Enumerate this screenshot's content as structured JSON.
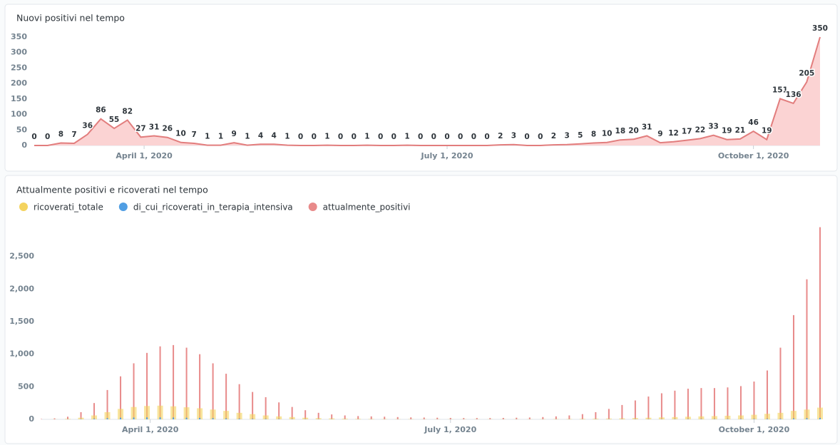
{
  "chart_data": [
    {
      "type": "area",
      "title": "Nuovi positivi nel tempo",
      "color": "#e27d7d",
      "fill": "#fbd3d3",
      "x": [
        "2020-02-28",
        "2020-03-03",
        "2020-03-07",
        "2020-03-11",
        "2020-03-15",
        "2020-03-19",
        "2020-03-23",
        "2020-03-27",
        "2020-03-31",
        "2020-04-04",
        "2020-04-08",
        "2020-04-12",
        "2020-04-16",
        "2020-04-20",
        "2020-04-24",
        "2020-04-28",
        "2020-05-02",
        "2020-05-06",
        "2020-05-10",
        "2020-05-14",
        "2020-05-18",
        "2020-05-22",
        "2020-05-26",
        "2020-05-30",
        "2020-06-03",
        "2020-06-07",
        "2020-06-11",
        "2020-06-15",
        "2020-06-19",
        "2020-06-23",
        "2020-06-27",
        "2020-07-01",
        "2020-07-05",
        "2020-07-09",
        "2020-07-13",
        "2020-07-17",
        "2020-07-21",
        "2020-07-25",
        "2020-07-29",
        "2020-08-02",
        "2020-08-06",
        "2020-08-10",
        "2020-08-14",
        "2020-08-18",
        "2020-08-22",
        "2020-08-26",
        "2020-08-30",
        "2020-09-03",
        "2020-09-07",
        "2020-09-11",
        "2020-09-15",
        "2020-09-19",
        "2020-09-23",
        "2020-09-27",
        "2020-10-01",
        "2020-10-05",
        "2020-10-09",
        "2020-10-13",
        "2020-10-17",
        "2020-10-21"
      ],
      "values": [
        0,
        0,
        8,
        7,
        36,
        86,
        55,
        82,
        27,
        31,
        26,
        10,
        7,
        1,
        1,
        9,
        1,
        4,
        4,
        1,
        0,
        0,
        1,
        0,
        0,
        1,
        0,
        0,
        1,
        0,
        0,
        0,
        0,
        0,
        0,
        2,
        3,
        0,
        0,
        2,
        3,
        5,
        8,
        10,
        18,
        20,
        31,
        9,
        12,
        17,
        22,
        33,
        19,
        21,
        46,
        19,
        151,
        136,
        205,
        350
      ],
      "xlim": [
        "2020-02-28",
        "2020-10-21"
      ],
      "xticks": [
        {
          "value": "2020-04-01",
          "label": "April 1, 2020"
        },
        {
          "value": "2020-07-01",
          "label": "July 1, 2020"
        },
        {
          "value": "2020-10-01",
          "label": "October 1, 2020"
        }
      ],
      "ylim": [
        0,
        350
      ],
      "yticks": [
        0,
        50,
        100,
        150,
        200,
        250,
        300,
        350
      ],
      "grid": false
    },
    {
      "type": "bar",
      "title": "Attualmente positivi e ricoverati nel tempo",
      "x": [
        "2020-02-28",
        "2020-03-03",
        "2020-03-07",
        "2020-03-11",
        "2020-03-15",
        "2020-03-19",
        "2020-03-23",
        "2020-03-27",
        "2020-03-31",
        "2020-04-04",
        "2020-04-08",
        "2020-04-12",
        "2020-04-16",
        "2020-04-20",
        "2020-04-24",
        "2020-04-28",
        "2020-05-02",
        "2020-05-06",
        "2020-05-10",
        "2020-05-14",
        "2020-05-18",
        "2020-05-22",
        "2020-05-26",
        "2020-05-30",
        "2020-06-03",
        "2020-06-07",
        "2020-06-11",
        "2020-06-15",
        "2020-06-19",
        "2020-06-23",
        "2020-06-27",
        "2020-07-01",
        "2020-07-05",
        "2020-07-09",
        "2020-07-13",
        "2020-07-17",
        "2020-07-21",
        "2020-07-25",
        "2020-07-29",
        "2020-08-02",
        "2020-08-06",
        "2020-08-10",
        "2020-08-14",
        "2020-08-18",
        "2020-08-22",
        "2020-08-26",
        "2020-08-30",
        "2020-09-03",
        "2020-09-07",
        "2020-09-11",
        "2020-09-15",
        "2020-09-19",
        "2020-09-23",
        "2020-09-27",
        "2020-10-01",
        "2020-10-05",
        "2020-10-09",
        "2020-10-13",
        "2020-10-17",
        "2020-10-21"
      ],
      "series": [
        {
          "name": "ricoverati_totale",
          "color": "#f4d35e",
          "values": [
            0,
            2,
            8,
            25,
            60,
            110,
            160,
            190,
            205,
            210,
            200,
            185,
            170,
            150,
            130,
            100,
            80,
            60,
            45,
            35,
            25,
            18,
            14,
            10,
            8,
            6,
            5,
            4,
            4,
            3,
            3,
            3,
            3,
            3,
            3,
            3,
            3,
            3,
            4,
            5,
            6,
            8,
            10,
            12,
            15,
            20,
            25,
            30,
            35,
            40,
            45,
            50,
            55,
            60,
            70,
            85,
            100,
            130,
            150,
            180
          ]
        },
        {
          "name": "di_cui_ricoverati_in_terapia_intensiva",
          "color": "#509ee3",
          "values": [
            0,
            0,
            1,
            4,
            10,
            18,
            25,
            28,
            30,
            30,
            28,
            25,
            22,
            18,
            14,
            10,
            8,
            6,
            5,
            4,
            3,
            2,
            2,
            1,
            1,
            1,
            1,
            1,
            1,
            1,
            1,
            1,
            1,
            1,
            1,
            1,
            1,
            1,
            1,
            1,
            1,
            1,
            2,
            2,
            2,
            3,
            3,
            3,
            4,
            4,
            5,
            5,
            5,
            6,
            7,
            8,
            10,
            14,
            18,
            22
          ]
        },
        {
          "name": "attualmente_positivi",
          "color": "#e88a8a",
          "values": [
            5,
            15,
            40,
            110,
            250,
            450,
            660,
            860,
            1020,
            1120,
            1140,
            1100,
            1000,
            860,
            700,
            540,
            420,
            340,
            260,
            190,
            140,
            100,
            75,
            60,
            50,
            45,
            40,
            35,
            30,
            28,
            25,
            22,
            20,
            20,
            20,
            22,
            25,
            28,
            35,
            45,
            60,
            80,
            110,
            160,
            220,
            290,
            350,
            400,
            440,
            470,
            480,
            480,
            490,
            510,
            580,
            750,
            1100,
            1600,
            2150,
            2950
          ]
        }
      ],
      "xlim": [
        "2020-02-28",
        "2020-10-21"
      ],
      "xticks": [
        {
          "value": "2020-04-01",
          "label": "April 1, 2020"
        },
        {
          "value": "2020-07-01",
          "label": "July 1, 2020"
        },
        {
          "value": "2020-10-01",
          "label": "October 1, 2020"
        }
      ],
      "ylim": [
        0,
        3000
      ],
      "yticks": [
        0,
        500,
        {
          "value": 1000,
          "label": "1,000"
        },
        {
          "value": 1500,
          "label": "1,500"
        },
        {
          "value": 2000,
          "label": "2,000"
        },
        {
          "value": 2500,
          "label": "2,500"
        }
      ],
      "grid": false
    }
  ]
}
